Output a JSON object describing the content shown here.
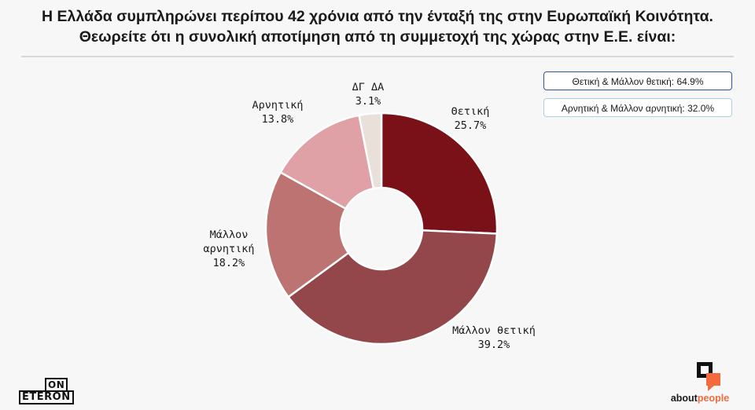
{
  "title": {
    "line1": "Η Ελλάδα συμπληρώνει περίπου 42 χρόνια από την ένταξή της στην Ευρωπαϊκή Κοινότητα.",
    "line2": "Θεωρείτε ότι η συνολική αποτίμηση από τη συμμετοχή της χώρας στην Ε.Ε. είναι:"
  },
  "legend": {
    "positive": "Θετική & Μάλλον θετική: 64.9%",
    "negative": "Αρνητική & Μάλλον αρνητική: 32.0%"
  },
  "chart_data": {
    "type": "pie",
    "variant": "donut",
    "slices": [
      {
        "label": [
          "Θετική"
        ],
        "pct": "25.7%",
        "value": 25.7,
        "color": "#7a1118"
      },
      {
        "label": [
          "Μάλλον θετική"
        ],
        "pct": "39.2%",
        "value": 39.2,
        "color": "#94474a"
      },
      {
        "label": [
          "Μάλλον",
          "αρνητική"
        ],
        "pct": "18.2%",
        "value": 18.2,
        "color": "#bc7371"
      },
      {
        "label": [
          "Αρνητική"
        ],
        "pct": "13.8%",
        "value": 13.8,
        "color": "#dfa0a6"
      },
      {
        "label": [
          "ΔΓ ΔΑ"
        ],
        "pct": "3.1%",
        "value": 3.1,
        "color": "#e8e0d9"
      }
    ]
  },
  "logos": {
    "left_top": "ON",
    "left_bottom": "ETERON",
    "right_about": "about",
    "right_people": "people"
  }
}
